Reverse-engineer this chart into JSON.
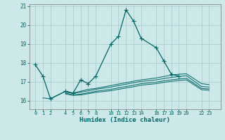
{
  "xlabel": "Humidex (Indice chaleur)",
  "bg_color": "#cce8e8",
  "grid_color": "#aad0d0",
  "line_color": "#006666",
  "ylim": [
    15.55,
    21.1
  ],
  "xlim": [
    -0.8,
    24.5
  ],
  "yticks": [
    16,
    17,
    18,
    19,
    20,
    21
  ],
  "xticks": [
    0,
    1,
    2,
    4,
    5,
    6,
    7,
    8,
    10,
    11,
    12,
    13,
    14,
    16,
    17,
    18,
    19,
    20,
    22,
    23
  ],
  "xtick_labels": [
    "0",
    "1",
    "2",
    "4",
    "5",
    "6",
    "7",
    "8",
    "10",
    "11",
    "12",
    "13",
    "14",
    "16",
    "17",
    "18",
    "19",
    "20",
    "22",
    "23"
  ],
  "line1_x": [
    0,
    1,
    2,
    4,
    5,
    6,
    7,
    8,
    10,
    11,
    12,
    13,
    14,
    16,
    17,
    18,
    19
  ],
  "line1_y": [
    17.9,
    17.3,
    16.1,
    16.5,
    16.4,
    17.1,
    16.9,
    17.3,
    19.0,
    19.4,
    20.8,
    20.2,
    19.3,
    18.8,
    18.1,
    17.4,
    17.3
  ],
  "line2_x": [
    4,
    5,
    6,
    7,
    8,
    10,
    11,
    12,
    13,
    14,
    16,
    17,
    18,
    19,
    20,
    22,
    23
  ],
  "line2_y": [
    16.45,
    16.4,
    16.5,
    16.6,
    16.65,
    16.8,
    16.88,
    16.95,
    17.03,
    17.1,
    17.2,
    17.28,
    17.35,
    17.4,
    17.42,
    16.9,
    16.85
  ],
  "line3_x": [
    1,
    2,
    4,
    5,
    6,
    7,
    8,
    10,
    11,
    12,
    13,
    14,
    16,
    17,
    18,
    19,
    20,
    22,
    23
  ],
  "line3_y": [
    16.15,
    16.1,
    16.5,
    16.4,
    16.45,
    16.52,
    16.6,
    16.72,
    16.8,
    16.87,
    16.95,
    17.02,
    17.1,
    17.17,
    17.23,
    17.28,
    17.32,
    16.75,
    16.72
  ],
  "line4_x": [
    4,
    5,
    6,
    7,
    8,
    10,
    11,
    12,
    13,
    14,
    16,
    17,
    18,
    19,
    20,
    22,
    23
  ],
  "line4_y": [
    16.4,
    16.32,
    16.35,
    16.42,
    16.5,
    16.6,
    16.68,
    16.75,
    16.82,
    16.9,
    16.98,
    17.05,
    17.1,
    17.15,
    17.18,
    16.65,
    16.62
  ],
  "line5_x": [
    4,
    5,
    6,
    7,
    8,
    10,
    11,
    12,
    13,
    14,
    16,
    17,
    18,
    19,
    20,
    22,
    23
  ],
  "line5_y": [
    16.35,
    16.28,
    16.3,
    16.37,
    16.44,
    16.53,
    16.6,
    16.67,
    16.74,
    16.82,
    16.9,
    16.97,
    17.02,
    17.07,
    17.1,
    16.58,
    16.55
  ]
}
